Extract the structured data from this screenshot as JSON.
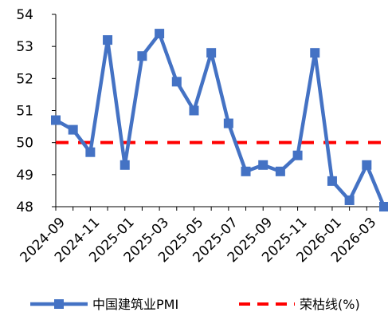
{
  "chart_data": {
    "type": "line",
    "title": "",
    "xlabel": "",
    "ylabel": "",
    "ylim": [
      48,
      54
    ],
    "y_ticks": [
      48,
      49,
      50,
      51,
      52,
      53,
      54
    ],
    "x": [
      "2024-09",
      "2024-10",
      "2024-11",
      "2024-12",
      "2025-01",
      "2025-02",
      "2025-03",
      "2025-04",
      "2025-05",
      "2025-06",
      "2025-07",
      "2025-08",
      "2025-09",
      "2025-10",
      "2025-11",
      "2025-12",
      "2026-01",
      "2026-02",
      "2026-03",
      "2026-04"
    ],
    "x_tick_labels": [
      "2024-09",
      "2024-11",
      "2025-01",
      "2025-03",
      "2025-05",
      "2025-07",
      "2025-09",
      "2025-11",
      "2026-01",
      "2026-03"
    ],
    "series": [
      {
        "name": "中国建筑业PMI",
        "color": "#4472C4",
        "marker": "square",
        "values": [
          50.7,
          50.4,
          49.7,
          53.2,
          49.3,
          52.7,
          53.4,
          51.9,
          51.0,
          52.8,
          50.6,
          49.1,
          49.3,
          49.1,
          49.6,
          52.8,
          48.8,
          48.2,
          49.3,
          48.0
        ]
      }
    ],
    "reference_line": {
      "name": "荣枯线(%)",
      "value": 50,
      "color": "#FF0000",
      "style": "dashed"
    },
    "grid": false,
    "legend": "bottom"
  }
}
